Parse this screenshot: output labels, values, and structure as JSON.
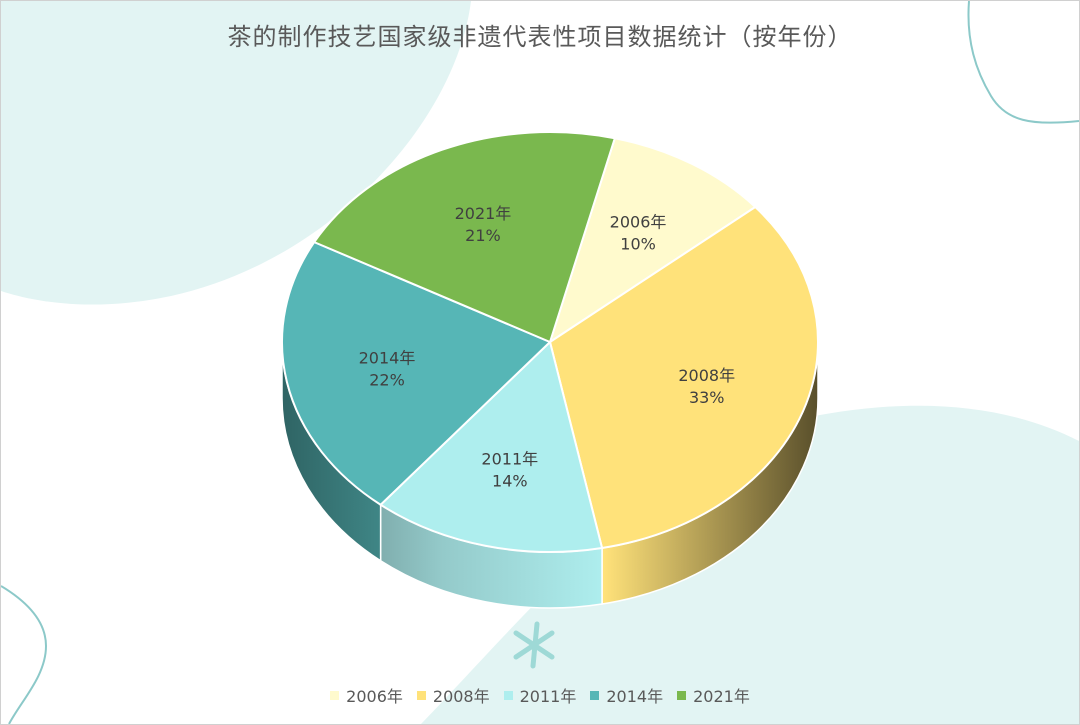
{
  "chart_data": {
    "type": "pie",
    "title": "茶的制作技艺国家级非遗代表性项目数据统计（按年份）",
    "categories": [
      "2006年",
      "2008年",
      "2011年",
      "2014年",
      "2021年"
    ],
    "values": [
      10,
      33,
      14,
      22,
      21
    ],
    "value_labels": [
      "10%",
      "33%",
      "14%",
      "22%",
      "21%"
    ],
    "colors": [
      "#FFFACD",
      "#FFE27A",
      "#AEEEEE",
      "#56B6B6",
      "#7AB84E"
    ],
    "legend_position": "bottom",
    "style": "3d"
  }
}
